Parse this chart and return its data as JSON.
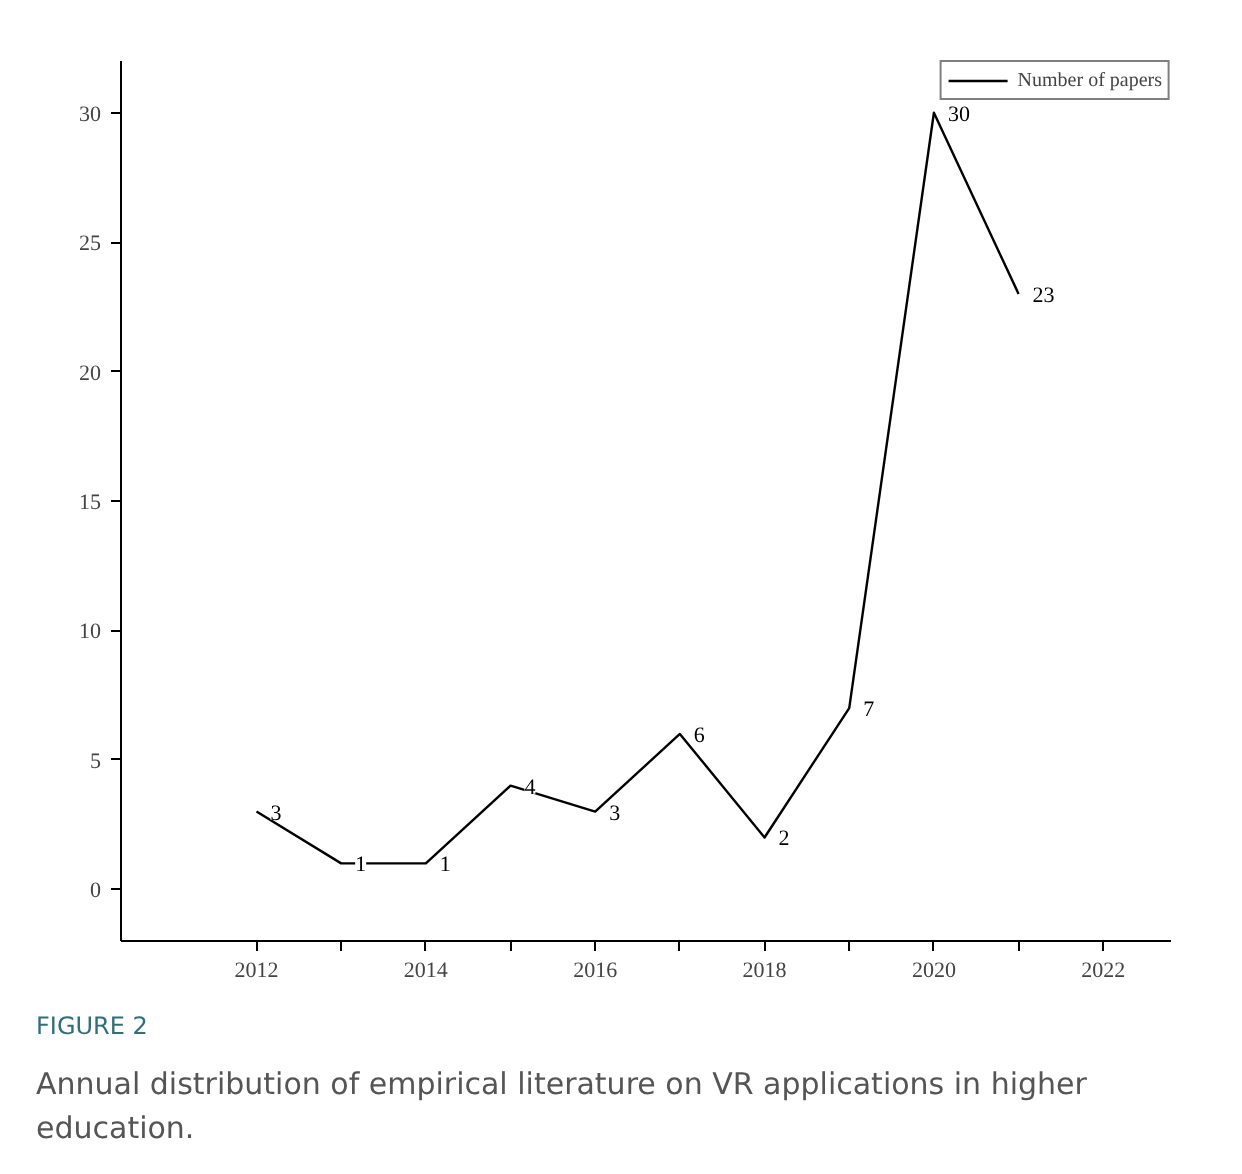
{
  "chart_data": {
    "type": "line",
    "x": [
      2012,
      2013,
      2014,
      2015,
      2016,
      2017,
      2018,
      2019,
      2020,
      2021
    ],
    "series": [
      {
        "name": "Number of papers",
        "color": "#000000",
        "values": [
          3,
          1,
          1,
          4,
          3,
          6,
          2,
          7,
          30,
          23
        ]
      }
    ],
    "xlim": [
      2010.4,
      2022.8
    ],
    "ylim": [
      -2,
      32
    ],
    "xticks": [
      2012,
      {
        "value": 2013,
        "label": null
      },
      2014,
      {
        "value": 2015,
        "label": null
      },
      2016,
      {
        "value": 2017,
        "label": null
      },
      2018,
      {
        "value": 2019,
        "label": null
      },
      2020,
      {
        "value": 2021,
        "label": null
      },
      2022
    ],
    "yticks": [
      0,
      5,
      10,
      15,
      20,
      25,
      30
    ],
    "data_labels": true,
    "grid": false,
    "legend": "top right",
    "marker": "none",
    "line_style": "solid",
    "annotations": [
      "FIGURE 2",
      "Annual distribution of empirical literature on VR applications in higher education."
    ]
  }
}
